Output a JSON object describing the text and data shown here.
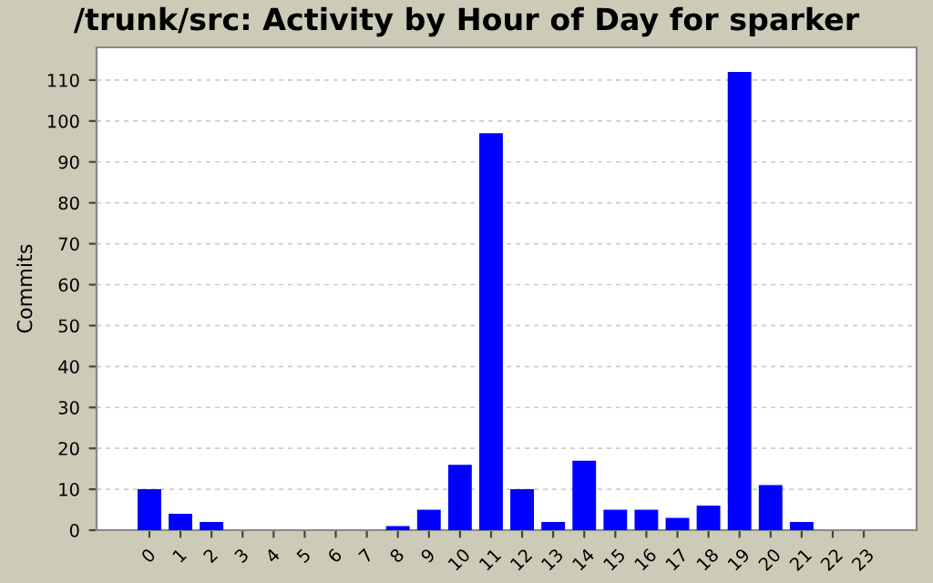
{
  "chart_data": {
    "type": "bar",
    "title": "/trunk/src: Activity by Hour of Day for sparker",
    "ylabel": "Commits",
    "categories": [
      "0",
      "1",
      "2",
      "3",
      "4",
      "5",
      "6",
      "7",
      "8",
      "9",
      "10",
      "11",
      "12",
      "13",
      "14",
      "15",
      "16",
      "17",
      "18",
      "19",
      "20",
      "21",
      "22",
      "23"
    ],
    "values": [
      10,
      4,
      2,
      0,
      0,
      0,
      0,
      0,
      1,
      5,
      16,
      97,
      10,
      2,
      17,
      5,
      5,
      3,
      6,
      112,
      11,
      2,
      0,
      0
    ],
    "color": "#0000ff",
    "ylim": [
      0,
      118
    ],
    "yticks": [
      0,
      10,
      20,
      30,
      40,
      50,
      60,
      70,
      80,
      90,
      100,
      110
    ],
    "grid": "y"
  }
}
